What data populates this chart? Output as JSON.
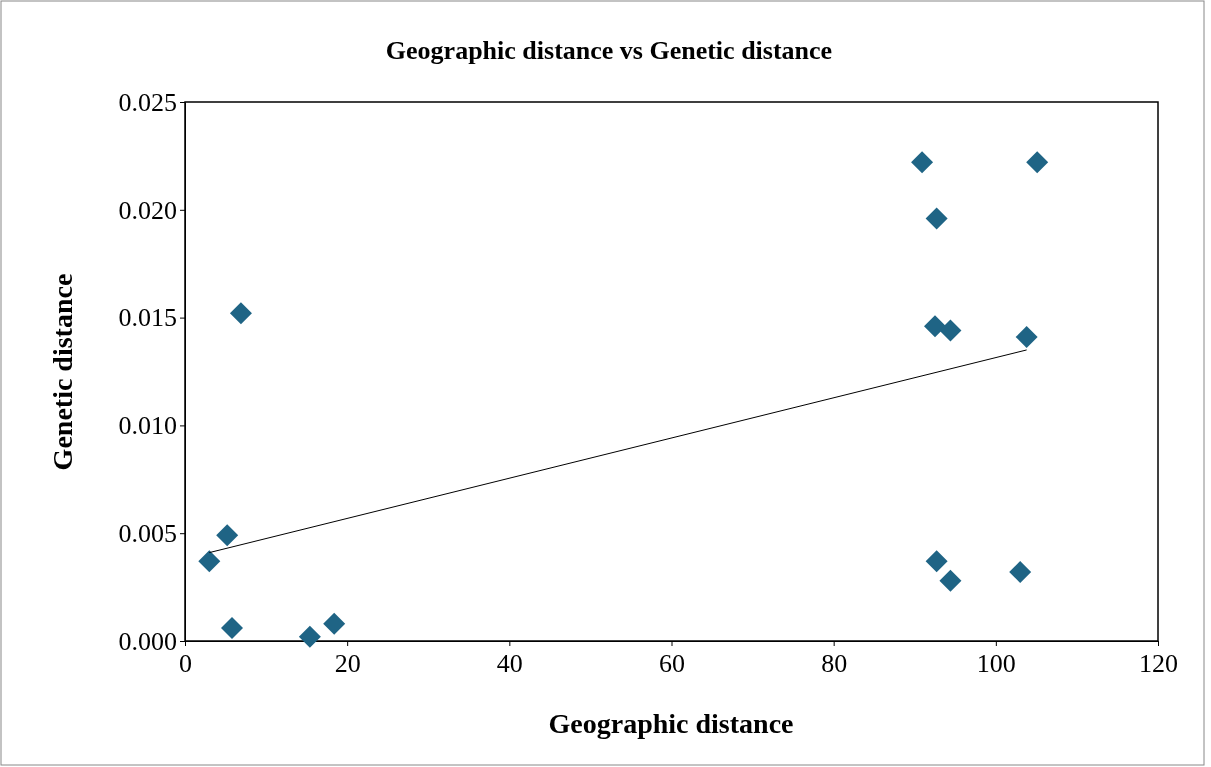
{
  "chart_data": {
    "type": "scatter",
    "title": "Geographic distance vs Genetic distance",
    "xlabel": "Geographic distance",
    "ylabel": "Genetic distance",
    "xlim": [
      0,
      120
    ],
    "xticks": [
      0,
      20,
      40,
      60,
      80,
      100,
      120
    ],
    "ylim": [
      0,
      0.025
    ],
    "yticks": [
      {
        "value": 0,
        "label": "0.000"
      },
      {
        "value": 0.005,
        "label": "0.005"
      },
      {
        "value": 0.01,
        "label": "0.010"
      },
      {
        "value": 0.015,
        "label": "0.015"
      },
      {
        "value": 0.02,
        "label": "0.020"
      },
      {
        "value": 0.025,
        "label": "0.025"
      }
    ],
    "grid": false,
    "series": [
      {
        "marker": "diamond",
        "color": "#1f6485",
        "x": [
          3,
          5.2,
          5.8,
          6.9,
          15.4,
          18.4,
          90.9,
          105.1,
          92.7,
          92.5,
          94.4,
          103.8,
          92.7,
          94.4,
          103.0
        ],
        "values": [
          0.0037,
          0.0049,
          0.0006,
          0.0152,
          0.0002,
          0.0008,
          0.0222,
          0.0222,
          0.0196,
          0.0146,
          0.0144,
          0.0141,
          0.0037,
          0.0028,
          0.0032
        ]
      },
      {
        "type": "line",
        "marker": "none",
        "color": "#000000",
        "x": [
          3,
          103.8
        ],
        "values": [
          0.0041,
          0.0135
        ]
      }
    ]
  }
}
